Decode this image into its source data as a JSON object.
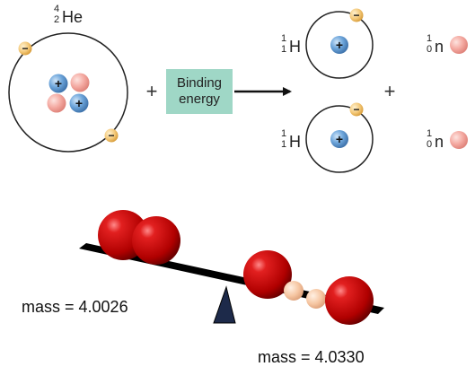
{
  "reactant": {
    "mass_number": "4",
    "atomic_number": "2",
    "symbol": "He"
  },
  "plus": "+",
  "binding_energy": {
    "line1": "Binding",
    "line2": "energy"
  },
  "products": {
    "hydrogen": {
      "mass_number": "1",
      "atomic_number": "1",
      "symbol": "H"
    },
    "neutron": {
      "mass_number": "1",
      "atomic_number": "0",
      "symbol": "n"
    }
  },
  "particle_signs": {
    "electron": "−",
    "proton": "+"
  },
  "balance": {
    "left_mass_label": "mass = 4.0026",
    "right_mass_label": "mass = 4.0330"
  },
  "colors": {
    "electron": "#f0c070",
    "proton": "#5b9bd5",
    "neutron": "#f4a6a0",
    "binding_box": "#9fd7c6",
    "beam": "#000000",
    "red_sphere": "#c00000",
    "small_sphere": "#f5c9a8"
  }
}
